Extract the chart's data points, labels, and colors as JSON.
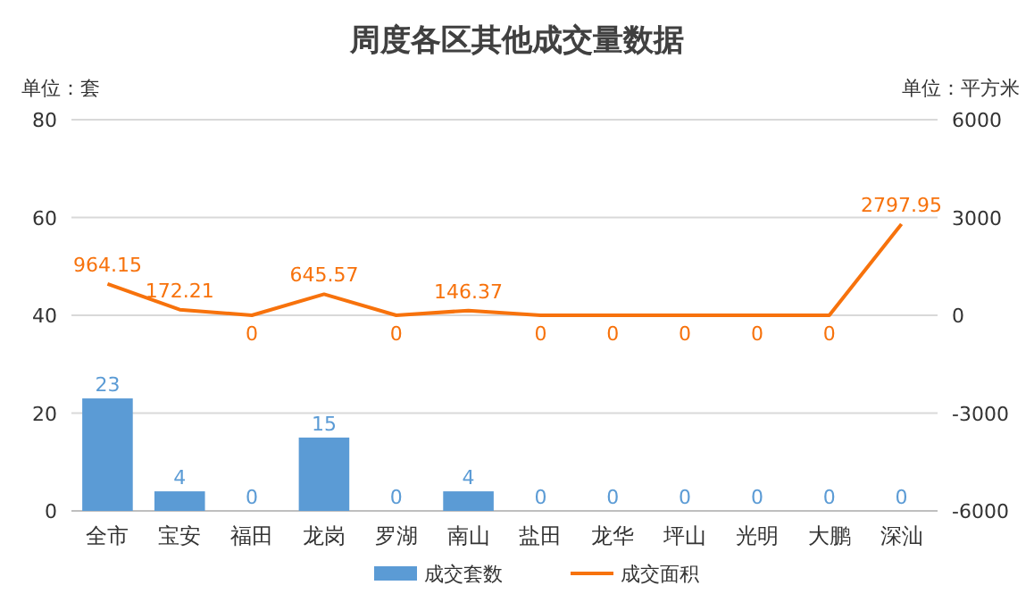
{
  "chart_data": {
    "type": "bar",
    "title": "周度各区其他成交量数据",
    "ylabel": "单位：套",
    "y2label": "单位：平方米",
    "categories": [
      "全市",
      "宝安",
      "福田",
      "龙岗",
      "罗湖",
      "南山",
      "盐田",
      "龙华",
      "坪山",
      "光明",
      "大鹏",
      "深汕"
    ],
    "series": [
      {
        "name": "成交套数",
        "color": "#5b9bd5",
        "values": [
          23,
          4,
          0,
          15,
          0,
          4,
          0,
          0,
          0,
          0,
          0,
          0
        ]
      },
      {
        "name": "成交面积",
        "type": "line",
        "axis": "y2",
        "color": "#f7720c",
        "values": [
          964.15,
          172.21,
          0,
          645.57,
          0,
          146.37,
          0,
          0,
          0,
          0,
          0,
          2797.95
        ]
      }
    ],
    "ylim": [
      0,
      80
    ],
    "yticks": [
      0,
      20,
      40,
      60,
      80
    ],
    "y2lim": [
      -6000,
      6000
    ],
    "y2ticks": [
      -6000,
      -3000,
      0,
      3000,
      6000
    ],
    "grid": "y",
    "legend": "bottom",
    "data_labels": true,
    "marker": "none"
  }
}
